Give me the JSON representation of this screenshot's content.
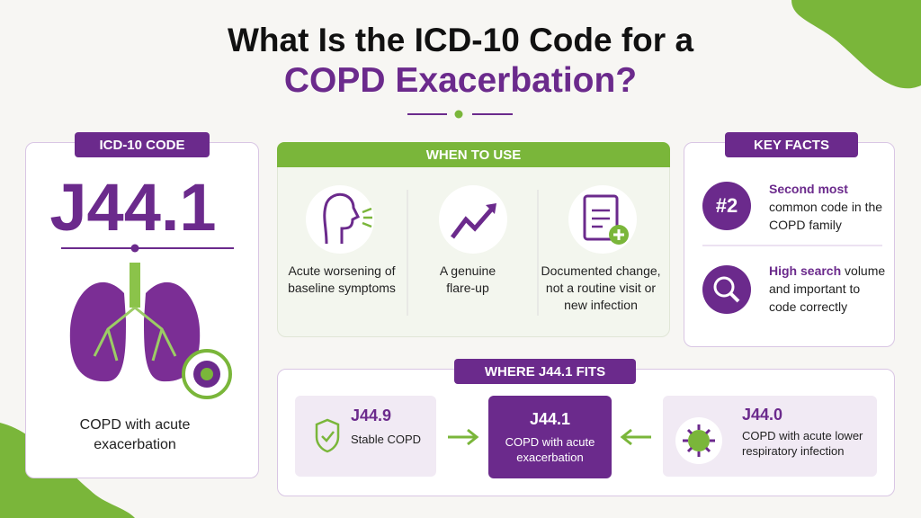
{
  "header": {
    "title_line1": "What Is the ICD-10 Code for a",
    "title_line2": "COPD Exacerbation?"
  },
  "code_card": {
    "badge": "ICD-10 CODE",
    "code": "J44.1",
    "caption": "COPD with acute exacerbation"
  },
  "when_to_use": {
    "title": "WHEN TO USE",
    "items": [
      "Acute worsening of baseline symptoms",
      "A genuine flare-up",
      "Documented change, not a routine visit or new infection"
    ]
  },
  "key_facts": {
    "title": "KEY FACTS",
    "facts": [
      {
        "badge": "#2",
        "highlight": "Second most",
        "text": "common code in the COPD family"
      },
      {
        "highlight": "High search",
        "text": "volume and important to code correctly"
      }
    ]
  },
  "where_fits": {
    "title": "WHERE J44.1 FITS",
    "codes": [
      {
        "code": "J44.9",
        "label": "Stable COPD"
      },
      {
        "code": "J44.1",
        "label": "COPD with acute exacerbation"
      },
      {
        "code": "J44.0",
        "label": "COPD with acute lower respiratory infection"
      }
    ]
  }
}
